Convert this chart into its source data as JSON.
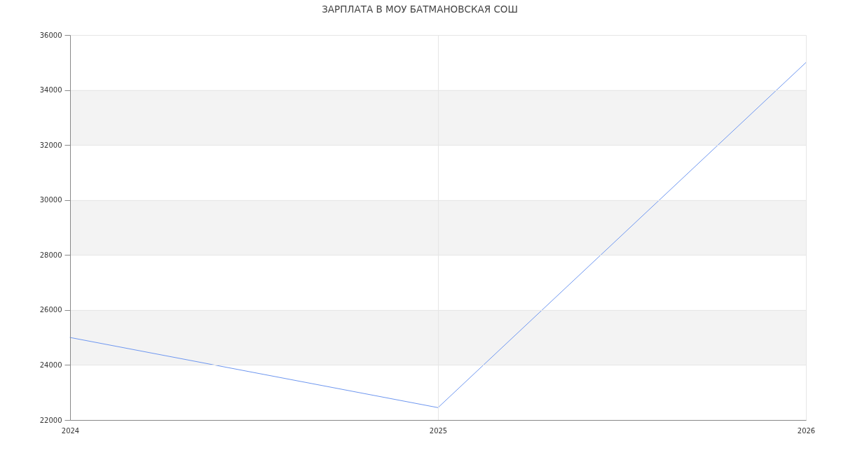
{
  "chart_data": {
    "type": "line",
    "title": "ЗАРПЛАТА В МОУ БАТМАНОВСКАЯ СОШ",
    "x": [
      2024,
      2025,
      2026
    ],
    "series": [
      {
        "color": "#6d96f0",
        "values": [
          25000,
          22450,
          35000
        ]
      }
    ],
    "xlim": [
      2024,
      2026
    ],
    "xticks": [
      2024,
      2025,
      2026
    ],
    "ylim": [
      22000,
      36000
    ],
    "yticks": [
      22000,
      24000,
      26000,
      28000,
      30000,
      32000,
      34000,
      36000
    ],
    "grid": true,
    "bands": [
      {
        "axis": "y",
        "from": 24000,
        "to": 26000,
        "color": "#f3f3f3"
      },
      {
        "axis": "y",
        "from": 28000,
        "to": 30000,
        "color": "#f3f3f3"
      },
      {
        "axis": "y",
        "from": 32000,
        "to": 34000,
        "color": "#f3f3f3"
      }
    ]
  }
}
